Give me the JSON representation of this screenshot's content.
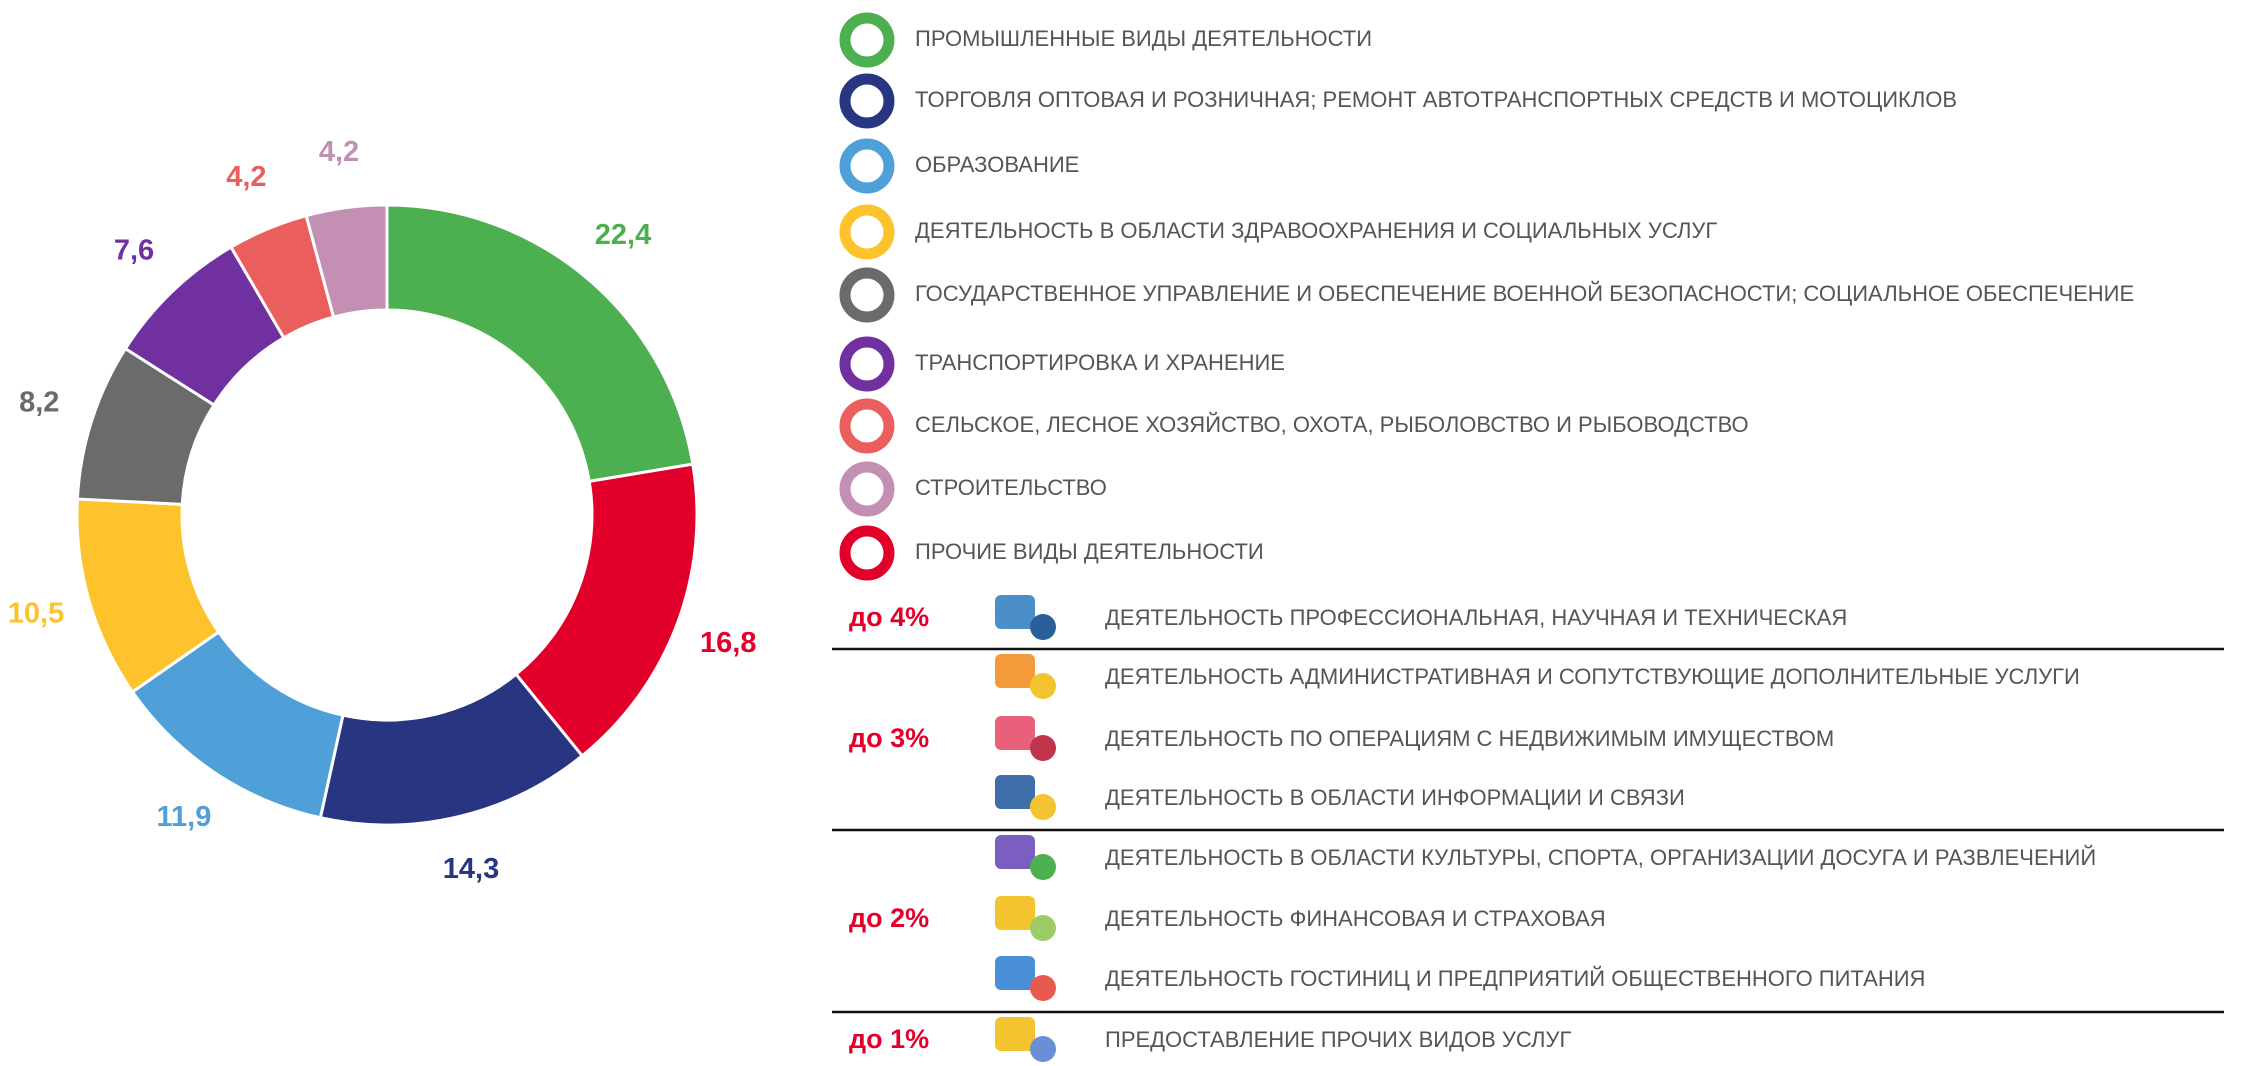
{
  "chart_data": {
    "type": "pie",
    "donut": true,
    "values": [
      22.4,
      16.8,
      14.3,
      11.9,
      10.5,
      8.2,
      7.6,
      4.2,
      4.2
    ],
    "value_labels": [
      "22,4",
      "16,8",
      "14,3",
      "11,9",
      "10,5",
      "8,2",
      "7,6",
      "4,2",
      "4,2"
    ],
    "colors": [
      "#4caf50",
      "#e2002b",
      "#283580",
      "#4fa0d8",
      "#fdc22c",
      "#6b6b6b",
      "#7030a0",
      "#eb5e5e",
      "#c38fb3"
    ]
  },
  "legend": {
    "items": [
      {
        "label": "ПРОМЫШЛЕННЫЕ ВИДЫ ДЕЯТЕЛЬНОСТИ",
        "color": "#4caf50"
      },
      {
        "label": "ТОРГОВЛЯ ОПТОВАЯ И РОЗНИЧНАЯ; РЕМОНТ АВТОТРАНСПОРТНЫХ СРЕДСТВ И МОТОЦИКЛОВ",
        "color": "#283580"
      },
      {
        "label": "ОБРАЗОВАНИЕ",
        "color": "#4fa0d8"
      },
      {
        "label": "ДЕЯТЕЛЬНОСТЬ В ОБЛАСТИ ЗДРАВООХРАНЕНИЯ И СОЦИАЛЬНЫХ УСЛУГ",
        "color": "#fdc22c"
      },
      {
        "label": "ГОСУДАРСТВЕННОЕ УПРАВЛЕНИЕ И ОБЕСПЕЧЕНИЕ ВОЕННОЙ БЕЗОПАСНОСТИ; СОЦИАЛЬНОЕ ОБЕСПЕЧЕНИЕ",
        "color": "#6b6b6b"
      },
      {
        "label": "ТРАНСПОРТИРОВКА И ХРАНЕНИЕ",
        "color": "#7030a0"
      },
      {
        "label": "СЕЛЬСКОЕ, ЛЕСНОЕ ХОЗЯЙСТВО, ОХОТА, РЫБОЛОВСТВО И РЫБОВОДСТВО",
        "color": "#eb5e5e"
      },
      {
        "label": "СТРОИТЕЛЬСТВО",
        "color": "#c38fb3"
      },
      {
        "label": "ПРОЧИЕ ВИДЫ ДЕЯТЕЛЬНОСТИ",
        "color": "#e2002b"
      }
    ]
  },
  "table": {
    "groups": [
      {
        "label": "до 4%",
        "items": [
          "ДЕЯТЕЛЬНОСТЬ ПРОФЕССИОНАЛЬНАЯ, НАУЧНАЯ И ТЕХНИЧЕСКАЯ"
        ]
      },
      {
        "label": "до 3%",
        "items": [
          "ДЕЯТЕЛЬНОСТЬ АДМИНИСТРАТИВНАЯ И СОПУТСТВУЮЩИЕ ДОПОЛНИТЕЛЬНЫЕ УСЛУГИ",
          "ДЕЯТЕЛЬНОСТЬ ПО ОПЕРАЦИЯМ С НЕДВИЖИМЫМ ИМУЩЕСТВОМ",
          "ДЕЯТЕЛЬНОСТЬ В ОБЛАСТИ ИНФОРМАЦИИ И СВЯЗИ"
        ]
      },
      {
        "label": "до 2%",
        "items": [
          "ДЕЯТЕЛЬНОСТЬ В ОБЛАСТИ КУЛЬТУРЫ, СПОРТА, ОРГАНИЗАЦИИ ДОСУГА И РАЗВЛЕЧЕНИЙ",
          "ДЕЯТЕЛЬНОСТЬ ФИНАНСОВАЯ И СТРАХОВАЯ",
          "ДЕЯТЕЛЬНОСТЬ ГОСТИНИЦ И ПРЕДПРИЯТИЙ ОБЩЕСТВЕННОГО ПИТАНИЯ"
        ]
      },
      {
        "label": "до 1%",
        "items": [
          "ПРЕДОСТАВЛЕНИЕ ПРОЧИХ ВИДОВ УСЛУГ"
        ]
      }
    ]
  }
}
